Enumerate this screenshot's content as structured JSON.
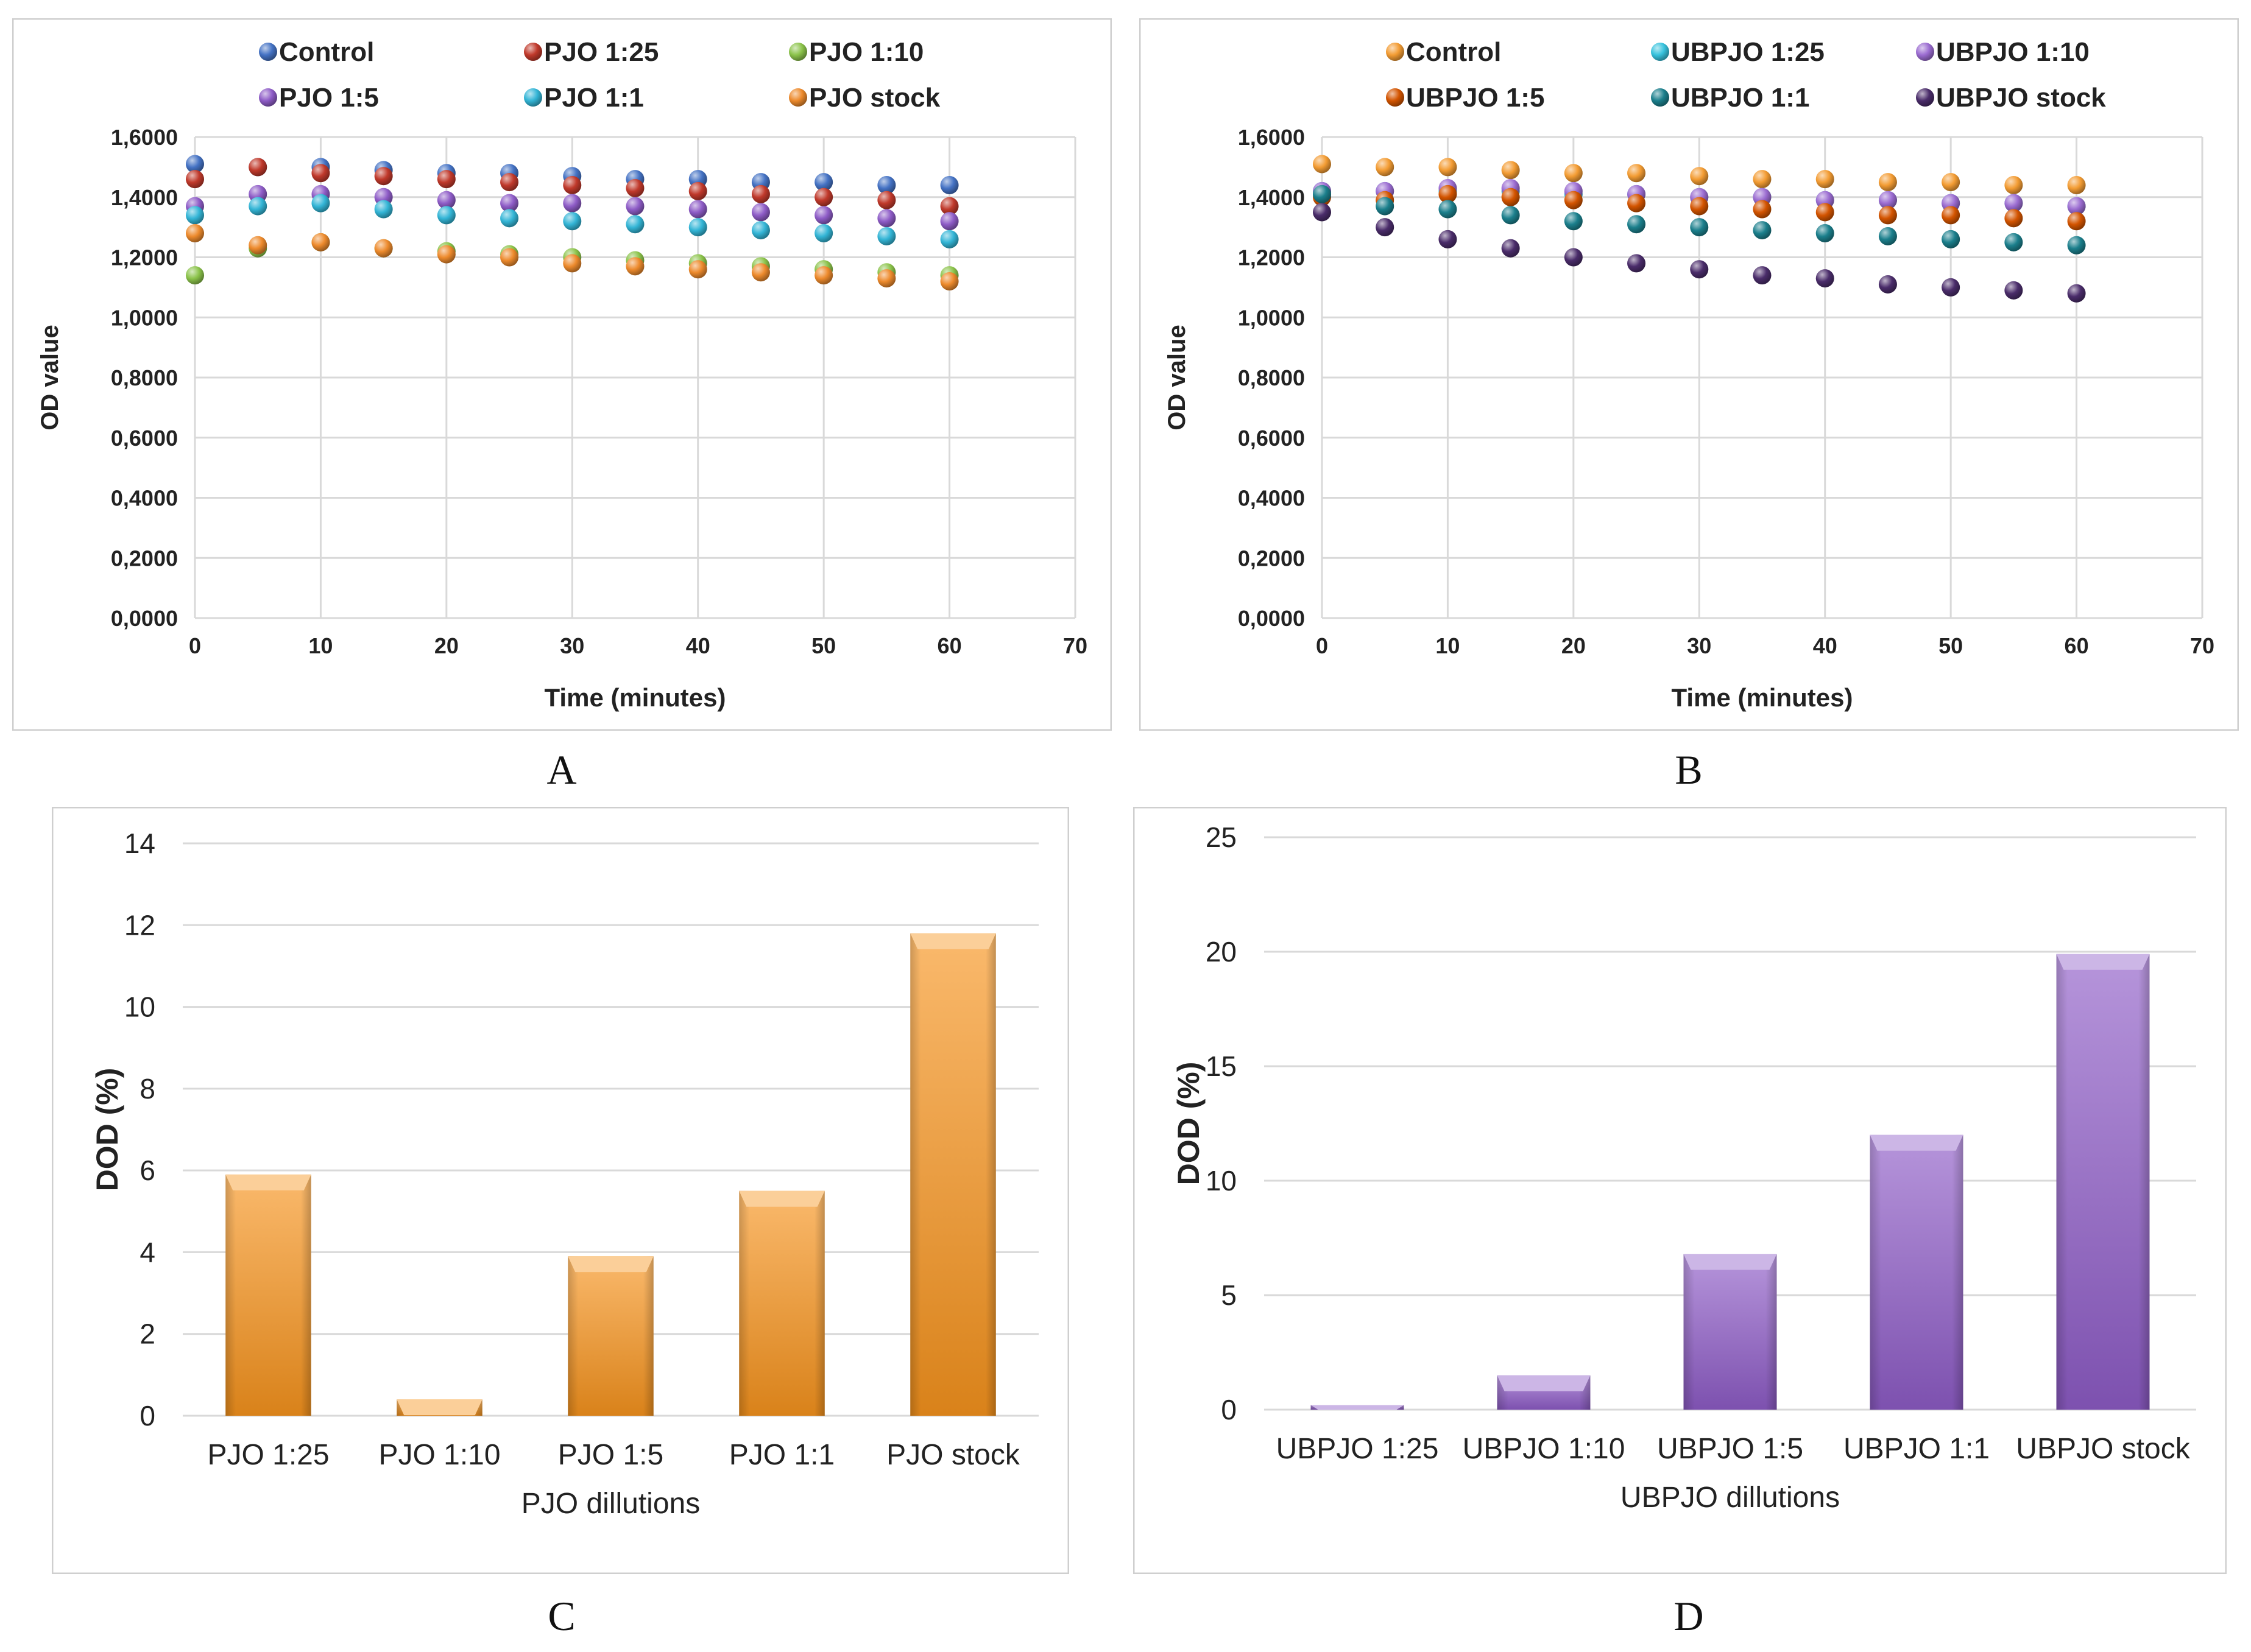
{
  "captions": {
    "a": "A",
    "b": "B",
    "c": "C",
    "d": "D"
  },
  "chart_data": [
    {
      "id": "A",
      "type": "scatter",
      "xlabel": "Time (minutes)",
      "ylabel": "OD value",
      "xlim": [
        0,
        70
      ],
      "ylim": [
        0,
        1.6
      ],
      "x_ticks": [
        "0",
        "10",
        "20",
        "30",
        "40",
        "50",
        "60",
        "70"
      ],
      "y_ticks": [
        "0,0000",
        "0,2000",
        "0,4000",
        "0,6000",
        "0,8000",
        "1,0000",
        "1,2000",
        "1,4000",
        "1,6000"
      ],
      "grid": true,
      "legend_position": "top",
      "x": [
        0,
        5,
        10,
        15,
        20,
        25,
        30,
        35,
        40,
        45,
        50,
        55,
        60
      ],
      "series": [
        {
          "name": "Control",
          "color": "#4472C4",
          "values": [
            1.51,
            1.5,
            1.5,
            1.49,
            1.48,
            1.48,
            1.47,
            1.46,
            1.46,
            1.45,
            1.45,
            1.44,
            1.44
          ]
        },
        {
          "name": "PJO 1:25",
          "color": "#C0392B",
          "values": [
            1.46,
            1.5,
            1.48,
            1.47,
            1.46,
            1.45,
            1.44,
            1.43,
            1.42,
            1.41,
            1.4,
            1.39,
            1.37
          ]
        },
        {
          "name": "PJO 1:10",
          "color": "#8BC34A",
          "values": [
            1.14,
            1.23,
            1.25,
            1.23,
            1.22,
            1.21,
            1.2,
            1.19,
            1.18,
            1.17,
            1.16,
            1.15,
            1.14
          ]
        },
        {
          "name": "PJO 1:5",
          "color": "#8E5CC7",
          "values": [
            1.37,
            1.41,
            1.41,
            1.4,
            1.39,
            1.38,
            1.38,
            1.37,
            1.36,
            1.35,
            1.34,
            1.33,
            1.32
          ]
        },
        {
          "name": "PJO 1:1",
          "color": "#33B5D6",
          "values": [
            1.34,
            1.37,
            1.38,
            1.36,
            1.34,
            1.33,
            1.32,
            1.31,
            1.3,
            1.29,
            1.28,
            1.27,
            1.26
          ]
        },
        {
          "name": "PJO stock",
          "color": "#ED8A2C",
          "values": [
            1.28,
            1.24,
            1.25,
            1.23,
            1.21,
            1.2,
            1.18,
            1.17,
            1.16,
            1.15,
            1.14,
            1.13,
            1.12
          ]
        }
      ]
    },
    {
      "id": "B",
      "type": "scatter",
      "xlabel": "Time (minutes)",
      "ylabel": "OD value",
      "xlim": [
        0,
        70
      ],
      "ylim": [
        0,
        1.6
      ],
      "x_ticks": [
        "0",
        "10",
        "20",
        "30",
        "40",
        "50",
        "60",
        "70"
      ],
      "y_ticks": [
        "0,0000",
        "0,2000",
        "0,4000",
        "0,6000",
        "0,8000",
        "1,0000",
        "1,2000",
        "1,4000",
        "1,6000"
      ],
      "grid": true,
      "legend_position": "top",
      "x": [
        0,
        5,
        10,
        15,
        20,
        25,
        30,
        35,
        40,
        45,
        50,
        55,
        60
      ],
      "series": [
        {
          "name": "Control",
          "color": "#F39C33",
          "values": [
            1.51,
            1.5,
            1.5,
            1.49,
            1.48,
            1.48,
            1.47,
            1.46,
            1.46,
            1.45,
            1.45,
            1.44,
            1.44
          ]
        },
        {
          "name": "UBPJO 1:25",
          "color": "#36C2DD",
          "values": [
            1.42,
            1.42,
            1.42,
            1.42,
            1.41,
            1.41,
            1.4,
            1.4,
            1.39,
            1.39,
            1.38,
            1.38,
            1.37
          ]
        },
        {
          "name": "UBPJO 1:10",
          "color": "#9B6CD1",
          "values": [
            1.42,
            1.42,
            1.43,
            1.43,
            1.42,
            1.41,
            1.4,
            1.4,
            1.39,
            1.39,
            1.38,
            1.38,
            1.37
          ]
        },
        {
          "name": "UBPJO 1:5",
          "color": "#D35400",
          "values": [
            1.4,
            1.39,
            1.41,
            1.4,
            1.39,
            1.38,
            1.37,
            1.36,
            1.35,
            1.34,
            1.34,
            1.33,
            1.32
          ]
        },
        {
          "name": "UBPJO 1:1",
          "color": "#1B7F8C",
          "values": [
            1.41,
            1.37,
            1.36,
            1.34,
            1.32,
            1.31,
            1.3,
            1.29,
            1.28,
            1.27,
            1.26,
            1.25,
            1.24
          ]
        },
        {
          "name": "UBPJO stock",
          "color": "#4A2C6A",
          "values": [
            1.35,
            1.3,
            1.26,
            1.23,
            1.2,
            1.18,
            1.16,
            1.14,
            1.13,
            1.11,
            1.1,
            1.09,
            1.08
          ]
        }
      ]
    },
    {
      "id": "C",
      "type": "bar",
      "xlabel": "PJO dillutions",
      "ylabel": "DOD (%)",
      "ylim": [
        0,
        14
      ],
      "y_ticks": [
        "0",
        "2",
        "4",
        "6",
        "8",
        "10",
        "12",
        "14"
      ],
      "grid": true,
      "color": "#F7941D",
      "categories": [
        "PJO 1:25",
        "PJO 1:10",
        "PJO 1:5",
        "PJO 1:1",
        "PJO stock"
      ],
      "values": [
        5.9,
        0.4,
        3.9,
        5.5,
        11.8
      ]
    },
    {
      "id": "D",
      "type": "bar",
      "xlabel": "UBPJO dillutions",
      "ylabel": "DOD (%)",
      "ylim": [
        0,
        25
      ],
      "y_ticks": [
        "0",
        "5",
        "10",
        "15",
        "20",
        "25"
      ],
      "grid": true,
      "color": "#8E5CC7",
      "categories": [
        "UBPJO 1:25",
        "UBPJO 1:10",
        "UBPJO 1:5",
        "UBPJO 1:1",
        "UBPJO stock"
      ],
      "values": [
        0.2,
        1.5,
        6.8,
        12.0,
        19.9
      ]
    }
  ]
}
